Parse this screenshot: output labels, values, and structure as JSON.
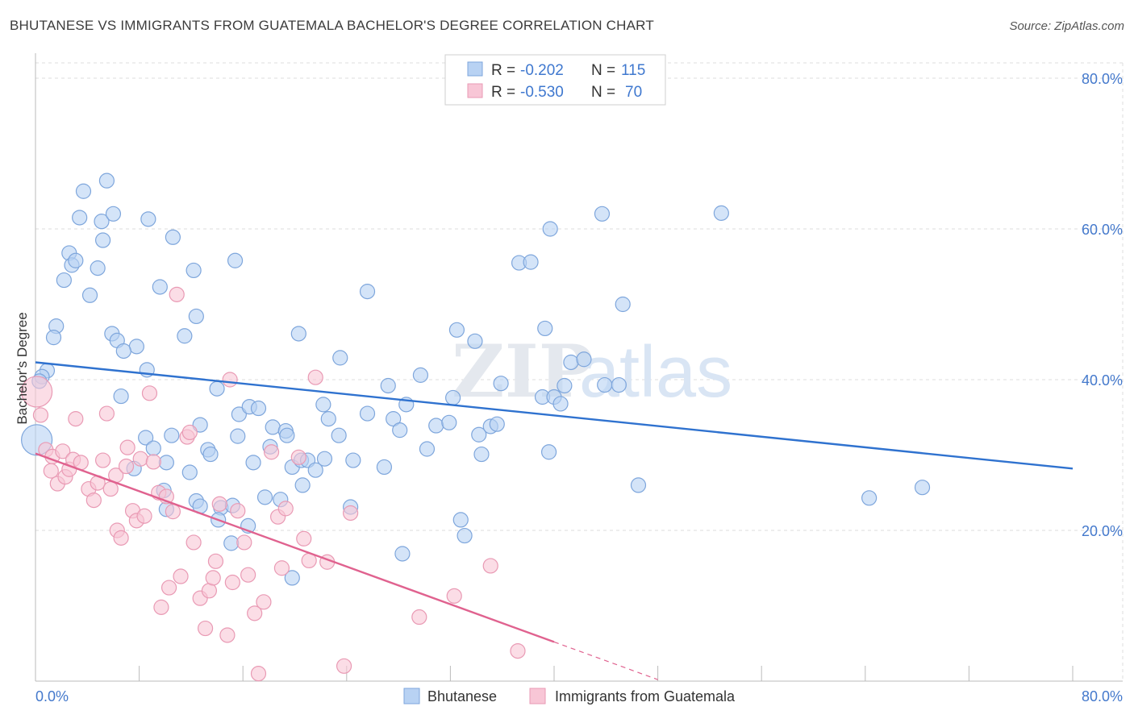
{
  "title": "BHUTANESE VS IMMIGRANTS FROM GUATEMALA BACHELOR'S DEGREE CORRELATION CHART",
  "source": "Source: ZipAtlas.com",
  "watermark": {
    "part1": "ZIP",
    "part2": "atlas"
  },
  "colors": {
    "blue_fill": "#b8d2f3",
    "blue_stroke": "#7ea6dc",
    "blue_line": "#2f72cf",
    "pink_fill": "#f8c6d6",
    "pink_stroke": "#e99ab4",
    "pink_line": "#e0628f",
    "tick_text": "#4479cc",
    "grid": "#dddddd"
  },
  "chart_data": {
    "type": "scatter",
    "xlabel": "",
    "ylabel": "Bachelor's Degree",
    "xlim": [
      0,
      80
    ],
    "ylim": [
      0,
      80
    ],
    "x_tick_labels": [
      "0.0%",
      "80.0%"
    ],
    "y_ticks": [
      20,
      40,
      60,
      80
    ],
    "y_tick_labels": [
      "20.0%",
      "40.0%",
      "60.0%",
      "80.0%"
    ],
    "grid": true,
    "legend": {
      "placement": "top-center",
      "rows": [
        {
          "r_label": "R =",
          "r_value": "-0.202",
          "n_label": "N =",
          "n_value": "115"
        },
        {
          "r_label": "R =",
          "r_value": "-0.530",
          "n_label": "N =",
          "n_value": "70"
        }
      ]
    },
    "bottom_legend": [
      "Bhutanese",
      "Immigrants from Guatemala"
    ],
    "series": [
      {
        "name": "Bhutanese",
        "trend": {
          "x": [
            0,
            80
          ],
          "y": [
            42.3,
            28.2
          ],
          "dashed_to": null
        },
        "points": [
          [
            3.7,
            65
          ],
          [
            5.5,
            66.4
          ],
          [
            3.4,
            61.5
          ],
          [
            5.1,
            61
          ],
          [
            6,
            62
          ],
          [
            8.7,
            61.3
          ],
          [
            10.6,
            58.9
          ],
          [
            2.6,
            56.8
          ],
          [
            2.8,
            55.2
          ],
          [
            3.1,
            55.8
          ],
          [
            5.2,
            58.5
          ],
          [
            4.8,
            54.8
          ],
          [
            2.2,
            53.2
          ],
          [
            4.2,
            51.2
          ],
          [
            12.2,
            54.5
          ],
          [
            9.6,
            52.3
          ],
          [
            15.4,
            55.8
          ],
          [
            12.4,
            48.4
          ],
          [
            1.6,
            47.1
          ],
          [
            1.4,
            45.6
          ],
          [
            5.9,
            46.1
          ],
          [
            6.3,
            45.2
          ],
          [
            7.8,
            44.4
          ],
          [
            11.5,
            45.8
          ],
          [
            6.8,
            43.8
          ],
          [
            8.6,
            41.3
          ],
          [
            0.9,
            41.2
          ],
          [
            0.5,
            40.4
          ],
          [
            0.3,
            39.8
          ],
          [
            0.1,
            32
          ],
          [
            14,
            38.8
          ],
          [
            6.6,
            37.8
          ],
          [
            15.7,
            35.4
          ],
          [
            16.5,
            36.4
          ],
          [
            17.2,
            36.2
          ],
          [
            18.3,
            33.7
          ],
          [
            19.3,
            33.2
          ],
          [
            12.7,
            34
          ],
          [
            8.5,
            32.3
          ],
          [
            9.1,
            30.9
          ],
          [
            10.1,
            29
          ],
          [
            7.6,
            28.2
          ],
          [
            11.9,
            27.7
          ],
          [
            10.5,
            32.6
          ],
          [
            13.3,
            30.7
          ],
          [
            13.5,
            30.1
          ],
          [
            15.6,
            32.5
          ],
          [
            16.8,
            29
          ],
          [
            18.1,
            31.1
          ],
          [
            19.4,
            32.6
          ],
          [
            19.8,
            28.4
          ],
          [
            20.5,
            29.3
          ],
          [
            21,
            29.3
          ],
          [
            21.6,
            28
          ],
          [
            22.3,
            29.5
          ],
          [
            20.6,
            26
          ],
          [
            9.9,
            25.3
          ],
          [
            10.1,
            22.8
          ],
          [
            12.4,
            23.9
          ],
          [
            12.7,
            23.2
          ],
          [
            14.3,
            23
          ],
          [
            14.1,
            21.4
          ],
          [
            15.2,
            23.3
          ],
          [
            15.1,
            18.3
          ],
          [
            17.7,
            24.4
          ],
          [
            18.9,
            24.1
          ],
          [
            19.8,
            13.7
          ],
          [
            16.4,
            20.6
          ],
          [
            23.5,
            42.9
          ],
          [
            22.6,
            34.8
          ],
          [
            23.4,
            32.6
          ],
          [
            24.5,
            29.3
          ],
          [
            22.2,
            36.7
          ],
          [
            25.6,
            35.5
          ],
          [
            25.6,
            51.7
          ],
          [
            20.3,
            46.1
          ],
          [
            27.2,
            39.2
          ],
          [
            27.6,
            34.8
          ],
          [
            28.6,
            36.7
          ],
          [
            28.1,
            33.3
          ],
          [
            29.7,
            40.6
          ],
          [
            30.9,
            33.9
          ],
          [
            31.9,
            34.3
          ],
          [
            30.2,
            30.8
          ],
          [
            26.9,
            28.4
          ],
          [
            24.3,
            23.1
          ],
          [
            32.8,
            21.4
          ],
          [
            33.1,
            19.3
          ],
          [
            28.3,
            16.9
          ],
          [
            32.2,
            37.6
          ],
          [
            32.5,
            46.6
          ],
          [
            33.9,
            45.1
          ],
          [
            34.2,
            32.7
          ],
          [
            34.4,
            30.1
          ],
          [
            35.1,
            33.8
          ],
          [
            35.6,
            34.1
          ],
          [
            35.9,
            39.5
          ],
          [
            37.3,
            55.5
          ],
          [
            38.2,
            55.6
          ],
          [
            39.1,
            37.7
          ],
          [
            39.3,
            46.8
          ],
          [
            39.6,
            30.4
          ],
          [
            40,
            37.7
          ],
          [
            40.5,
            36.8
          ],
          [
            40.8,
            39.2
          ],
          [
            41.3,
            42.3
          ],
          [
            42.3,
            42.7
          ],
          [
            39.7,
            60
          ],
          [
            43.7,
            62
          ],
          [
            43.9,
            39.3
          ],
          [
            45,
            39.3
          ],
          [
            45.3,
            50
          ],
          [
            46.5,
            26
          ],
          [
            52.9,
            62.1
          ],
          [
            64.3,
            24.3
          ],
          [
            68.4,
            25.7
          ]
        ]
      },
      {
        "name": "Immigrants from Guatemala",
        "trend": {
          "x": [
            0,
            40
          ],
          "y": [
            30.2,
            5.2
          ],
          "dashed_to": [
            48,
            0.2
          ]
        },
        "points": [
          [
            0.1,
            38.4
          ],
          [
            0.4,
            35.3
          ],
          [
            0.8,
            30.7
          ],
          [
            1.3,
            29.8
          ],
          [
            1.2,
            27.9
          ],
          [
            1.7,
            26.2
          ],
          [
            2.1,
            30.5
          ],
          [
            2.3,
            27.1
          ],
          [
            2.6,
            28.1
          ],
          [
            2.9,
            29.4
          ],
          [
            3.1,
            34.8
          ],
          [
            3.5,
            29
          ],
          [
            4.1,
            25.5
          ],
          [
            4.5,
            24
          ],
          [
            4.8,
            26.3
          ],
          [
            5.2,
            29.3
          ],
          [
            5.5,
            35.5
          ],
          [
            5.8,
            25.5
          ],
          [
            6.2,
            27.3
          ],
          [
            6.3,
            20
          ],
          [
            6.6,
            19
          ],
          [
            7,
            28.5
          ],
          [
            7.1,
            31
          ],
          [
            7.5,
            22.6
          ],
          [
            7.8,
            21.3
          ],
          [
            8.1,
            29.5
          ],
          [
            8.4,
            21.9
          ],
          [
            8.8,
            38.2
          ],
          [
            9.1,
            29.1
          ],
          [
            9.5,
            25
          ],
          [
            9.7,
            9.8
          ],
          [
            10.1,
            24.5
          ],
          [
            10.3,
            12.4
          ],
          [
            10.6,
            22.5
          ],
          [
            10.9,
            51.3
          ],
          [
            11.2,
            13.9
          ],
          [
            11.7,
            32.4
          ],
          [
            11.9,
            33
          ],
          [
            12.2,
            18.4
          ],
          [
            12.7,
            11
          ],
          [
            13.1,
            7
          ],
          [
            13.4,
            12
          ],
          [
            13.7,
            13.7
          ],
          [
            13.9,
            15.9
          ],
          [
            14.2,
            23.5
          ],
          [
            14.8,
            6.1
          ],
          [
            15,
            40
          ],
          [
            15.2,
            13.1
          ],
          [
            15.6,
            22.6
          ],
          [
            16.1,
            18.4
          ],
          [
            16.4,
            14.1
          ],
          [
            16.9,
            9
          ],
          [
            17.2,
            1
          ],
          [
            17.6,
            10.5
          ],
          [
            18.2,
            30.4
          ],
          [
            18.7,
            21.8
          ],
          [
            19,
            15
          ],
          [
            19.3,
            22.9
          ],
          [
            20.3,
            29.7
          ],
          [
            20.7,
            18.9
          ],
          [
            21.1,
            16
          ],
          [
            21.6,
            40.3
          ],
          [
            22.5,
            15.8
          ],
          [
            23.8,
            2
          ],
          [
            24.3,
            22.3
          ],
          [
            29.6,
            8.5
          ],
          [
            32.3,
            11.3
          ],
          [
            35.1,
            15.3
          ],
          [
            37.2,
            4
          ]
        ]
      }
    ]
  }
}
